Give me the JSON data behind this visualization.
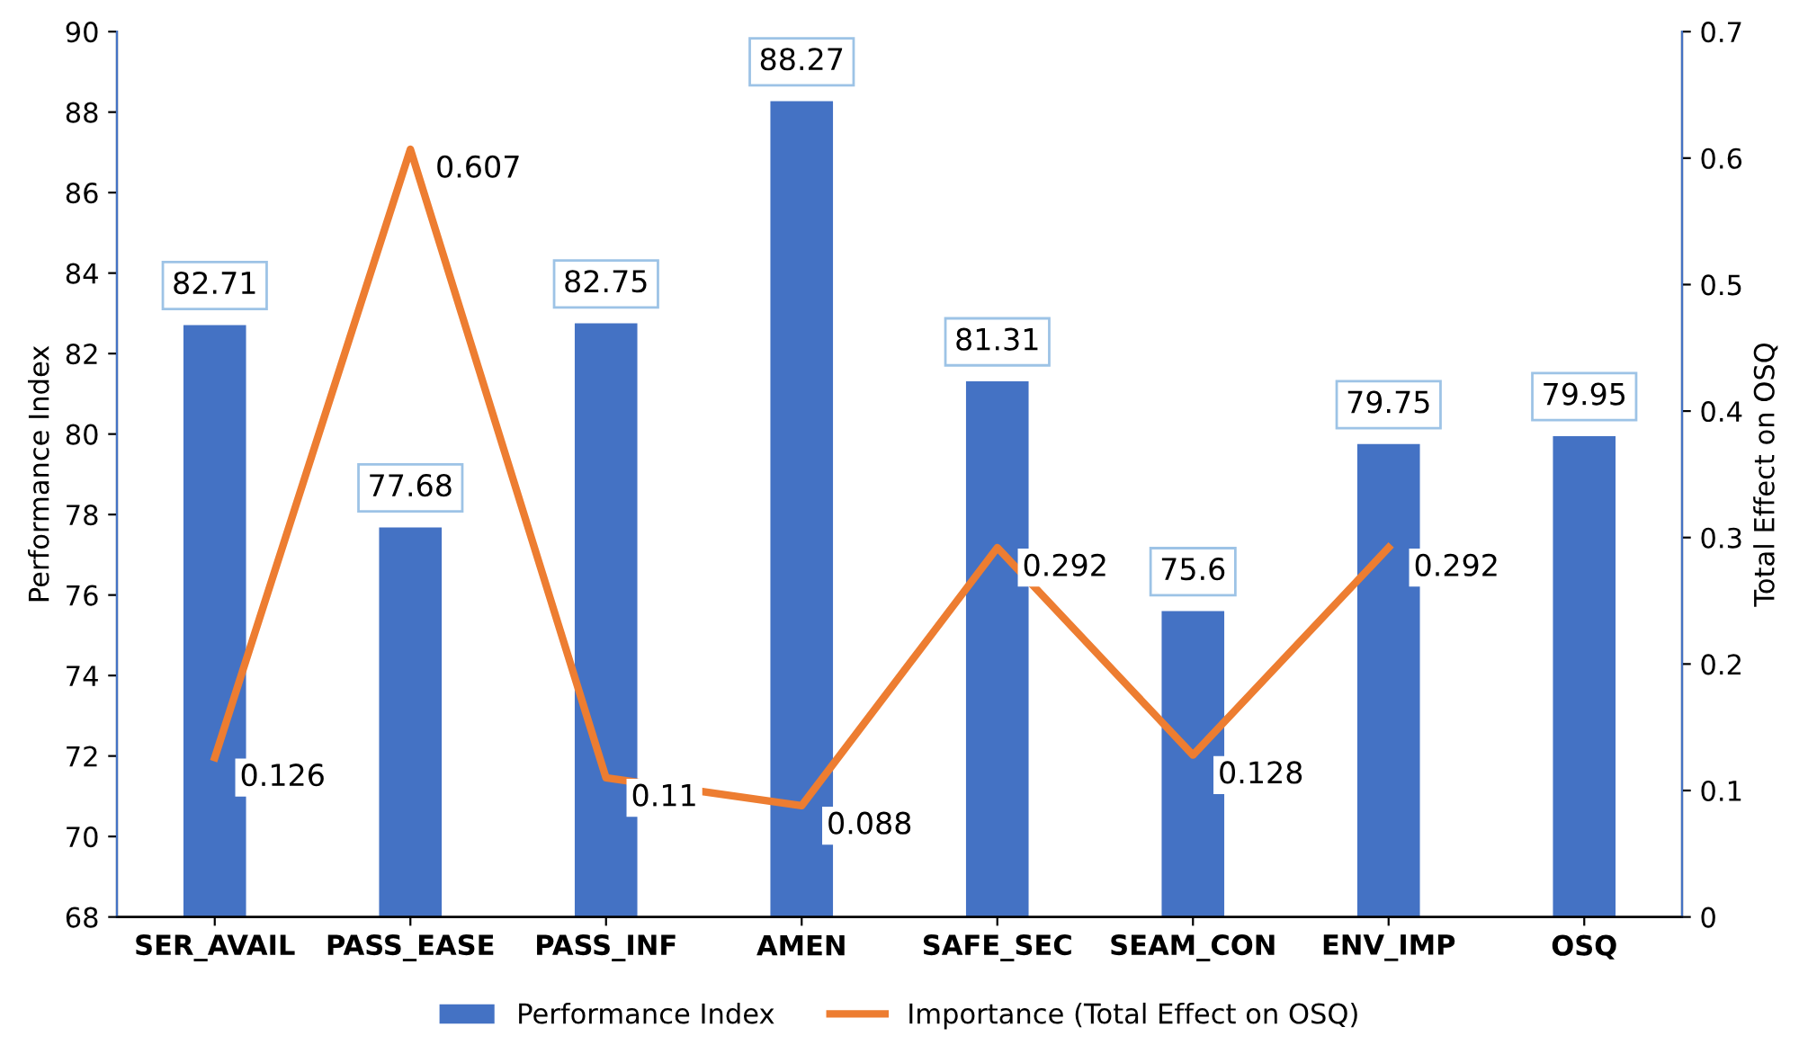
{
  "chart_data": {
    "type": "bar",
    "ylabel": "Performance Index",
    "y2label": "Total Effect on OSQ",
    "categories": [
      "SER_AVAIL",
      "PASS_EASE",
      "PASS_INF",
      "AMEN",
      "SAFE_SEC",
      "SEAM_CON",
      "ENV_IMP",
      "OSQ"
    ],
    "series": [
      {
        "name": "Performance Index",
        "color": "#4472c4",
        "values": [
          82.71,
          77.68,
          82.75,
          88.27,
          81.31,
          75.6,
          79.75,
          79.95
        ]
      },
      {
        "name": "Importance (Total Effect on OSQ)",
        "type": "line",
        "axis": "y2",
        "color": "#ed7d31",
        "values": [
          0.126,
          0.607,
          0.11,
          0.088,
          0.292,
          0.128,
          0.292,
          null
        ]
      }
    ],
    "ylim": [
      68,
      90
    ],
    "yticks": [
      68,
      70,
      72,
      74,
      76,
      78,
      80,
      82,
      84,
      86,
      88,
      90
    ],
    "y2lim": [
      0,
      0.7
    ],
    "y2ticks": [
      0,
      0.1,
      0.2,
      0.3,
      0.4,
      0.5,
      0.6,
      0.7
    ],
    "data_labels": true,
    "grid": false,
    "legend": "bottom",
    "marker": "none",
    "line_style": "solid"
  }
}
